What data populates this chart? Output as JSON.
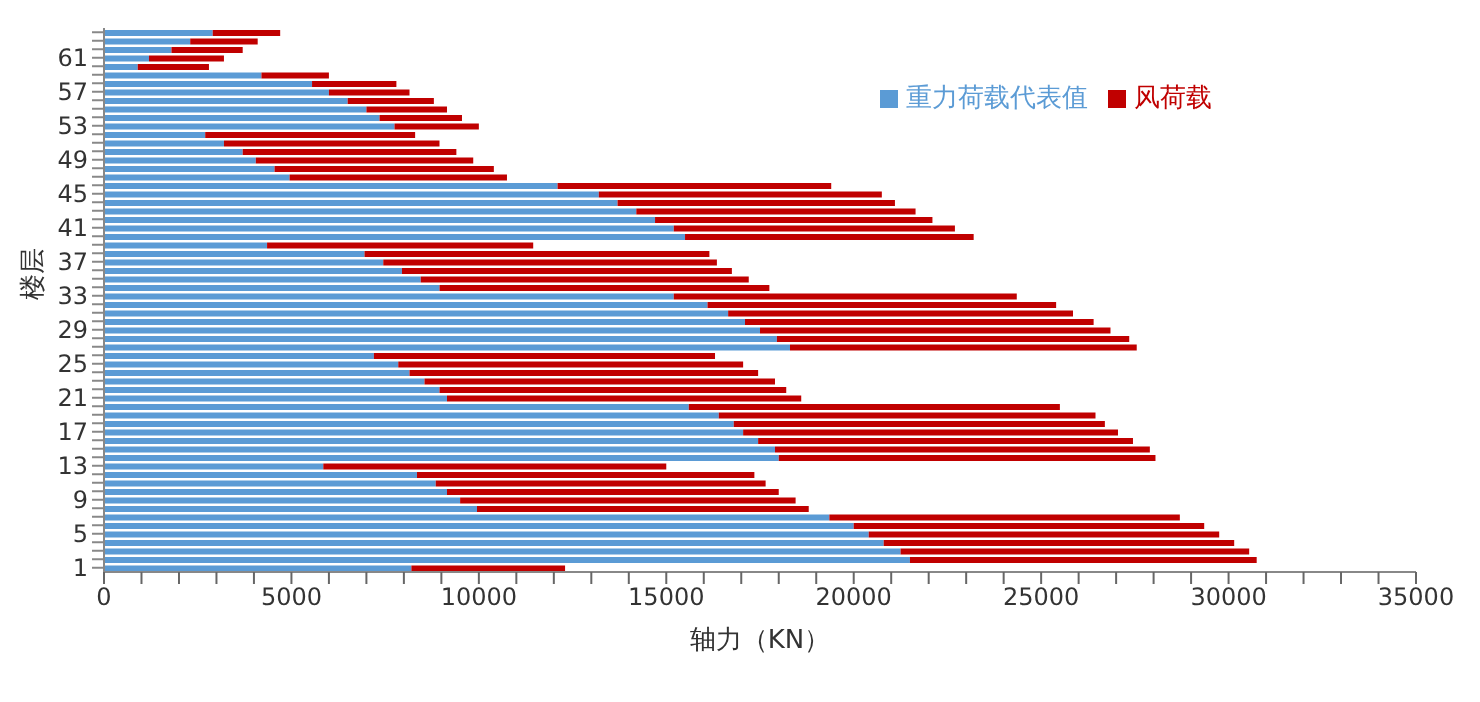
{
  "chart_data": {
    "type": "bar",
    "orientation": "horizontal",
    "stacked": true,
    "xlabel": "轴力（KN）",
    "ylabel": "楼层",
    "categories": [
      null,
      null,
      null,
      "61",
      null,
      null,
      null,
      "57",
      null,
      null,
      null,
      "53",
      null,
      null,
      null,
      "49",
      null,
      null,
      null,
      "45",
      null,
      null,
      null,
      "41",
      null,
      null,
      null,
      "37",
      null,
      null,
      null,
      "33",
      null,
      null,
      null,
      "29",
      null,
      null,
      null,
      "25",
      null,
      null,
      null,
      "21",
      null,
      null,
      null,
      "17",
      null,
      null,
      null,
      "13",
      null,
      null,
      null,
      "9",
      null,
      null,
      null,
      "5",
      null,
      null,
      null,
      "1"
    ],
    "series": [
      {
        "name": "重力荷载代表值",
        "color": "#5b9bd5",
        "values": [
          2900,
          2300,
          1800,
          1200,
          900,
          4200,
          5550,
          6000,
          6500,
          7000,
          7350,
          7750,
          2700,
          3200,
          3700,
          4050,
          4550,
          4950,
          12100,
          13200,
          13700,
          14200,
          14700,
          15200,
          15500,
          4350,
          6950,
          7450,
          7950,
          8450,
          8950,
          15200,
          16100,
          16650,
          17100,
          17500,
          17950,
          18300,
          7200,
          7850,
          8150,
          8550,
          8950,
          9150,
          15600,
          16400,
          16800,
          17050,
          17450,
          17900,
          18000,
          5850,
          8350,
          8850,
          9150,
          9500,
          9950,
          19350,
          20000,
          20400,
          20800,
          21250,
          21500,
          8200
        ]
      },
      {
        "name": "风荷载",
        "color": "#c00000",
        "values": [
          1800,
          1800,
          1900,
          2000,
          1900,
          1800,
          2250,
          2150,
          2300,
          2150,
          2200,
          2250,
          5600,
          5750,
          5700,
          5800,
          5850,
          5800,
          7300,
          7550,
          7400,
          7450,
          7400,
          7500,
          7700,
          7100,
          9200,
          8900,
          8800,
          8750,
          8800,
          9150,
          9300,
          9200,
          9300,
          9350,
          9400,
          9250,
          9100,
          9200,
          9300,
          9350,
          9250,
          9450,
          9900,
          10050,
          9900,
          10000,
          10000,
          10000,
          10050,
          9150,
          9000,
          8800,
          8850,
          8950,
          8850,
          9350,
          9350,
          9350,
          9350,
          9300,
          9250,
          4100
        ]
      }
    ],
    "xlim": [
      0,
      35000
    ],
    "xticks": [
      0,
      {
        "value": 1000,
        "label": null
      },
      {
        "value": 2000,
        "label": null
      },
      {
        "value": 3000,
        "label": null
      },
      {
        "value": 4000,
        "label": null
      },
      5000,
      {
        "value": 6000,
        "label": null
      },
      {
        "value": 7000,
        "label": null
      },
      {
        "value": 8000,
        "label": null
      },
      {
        "value": 9000,
        "label": null
      },
      10000,
      {
        "value": 11000,
        "label": null
      },
      {
        "value": 12000,
        "label": null
      },
      {
        "value": 13000,
        "label": null
      },
      {
        "value": 14000,
        "label": null
      },
      15000,
      {
        "value": 16000,
        "label": null
      },
      {
        "value": 17000,
        "label": null
      },
      {
        "value": 18000,
        "label": null
      },
      {
        "value": 19000,
        "label": null
      },
      20000,
      {
        "value": 21000,
        "label": null
      },
      {
        "value": 22000,
        "label": null
      },
      {
        "value": 23000,
        "label": null
      },
      {
        "value": 24000,
        "label": null
      },
      25000,
      {
        "value": 26000,
        "label": null
      },
      {
        "value": 27000,
        "label": null
      },
      {
        "value": 28000,
        "label": null
      },
      {
        "value": 29000,
        "label": null
      },
      30000,
      {
        "value": 31000,
        "label": null
      },
      {
        "value": 32000,
        "label": null
      },
      {
        "value": 33000,
        "label": null
      },
      {
        "value": 34000,
        "label": null
      },
      35000
    ],
    "grid": false,
    "legend": "top right"
  }
}
